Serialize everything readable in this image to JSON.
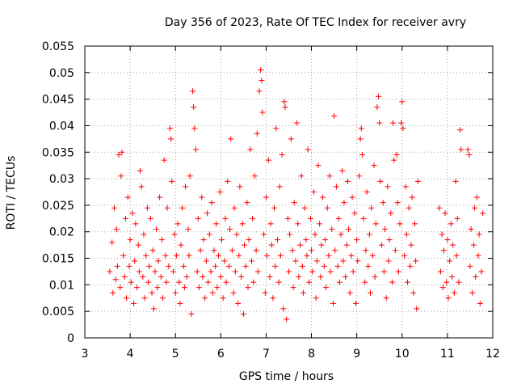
{
  "chart_data": {
    "type": "scatter",
    "title": "Day 356 of 2023, Rate Of TEC Index for receiver avry",
    "xlabel": "GPS time / hours",
    "ylabel": "ROTI / TECUs",
    "xlim": [
      3,
      12
    ],
    "ylim": [
      0,
      0.055
    ],
    "x_ticks": [
      "3",
      "4",
      "5",
      "6",
      "7",
      "8",
      "9",
      "10",
      "11",
      "12"
    ],
    "y_ticks": [
      "0",
      "0.005",
      "0.01",
      "0.015",
      "0.02",
      "0.025",
      "0.03",
      "0.035",
      "0.04",
      "0.045",
      "0.05",
      "0.055"
    ],
    "grid": true,
    "marker": "+",
    "series": [
      {
        "color": "#ff0000",
        "points": [
          [
            3.55,
            0.0125
          ],
          [
            3.6,
            0.018
          ],
          [
            3.62,
            0.0085
          ],
          [
            3.65,
            0.0245
          ],
          [
            3.68,
            0.011
          ],
          [
            3.7,
            0.0205
          ],
          [
            3.72,
            0.0135
          ],
          [
            3.75,
            0.0345
          ],
          [
            3.78,
            0.0095
          ],
          [
            3.8,
            0.0305
          ],
          [
            3.82,
            0.035
          ],
          [
            3.85,
            0.0155
          ],
          [
            3.88,
            0.0115
          ],
          [
            3.9,
            0.0225
          ],
          [
            3.92,
            0.0075
          ],
          [
            3.95,
            0.0265
          ],
          [
            3.98,
            0.0135
          ],
          [
            4.0,
            0.0185
          ],
          [
            4.02,
            0.0105
          ],
          [
            4.05,
            0.0235
          ],
          [
            4.08,
            0.0065
          ],
          [
            4.1,
            0.0145
          ],
          [
            4.12,
            0.0215
          ],
          [
            4.15,
            0.0095
          ],
          [
            4.18,
            0.0175
          ],
          [
            4.2,
            0.0125
          ],
          [
            4.22,
            0.0315
          ],
          [
            4.25,
            0.0285
          ],
          [
            4.28,
            0.0115
          ],
          [
            4.3,
            0.0195
          ],
          [
            4.32,
            0.0075
          ],
          [
            4.35,
            0.0155
          ],
          [
            4.38,
            0.0245
          ],
          [
            4.4,
            0.0105
          ],
          [
            4.42,
            0.0135
          ],
          [
            4.45,
            0.0225
          ],
          [
            4.48,
            0.0085
          ],
          [
            4.5,
            0.0165
          ],
          [
            4.52,
            0.0055
          ],
          [
            4.55,
            0.0125
          ],
          [
            4.58,
            0.0205
          ],
          [
            4.6,
            0.0095
          ],
          [
            4.62,
            0.0145
          ],
          [
            4.65,
            0.0265
          ],
          [
            4.68,
            0.0115
          ],
          [
            4.7,
            0.0185
          ],
          [
            4.72,
            0.0075
          ],
          [
            4.75,
            0.0335
          ],
          [
            4.78,
            0.0155
          ],
          [
            4.8,
            0.0105
          ],
          [
            4.82,
            0.0245
          ],
          [
            4.85,
            0.0135
          ],
          [
            4.88,
            0.0395
          ],
          [
            4.9,
            0.0375
          ],
          [
            4.92,
            0.0295
          ],
          [
            4.95,
            0.0125
          ],
          [
            4.98,
            0.0195
          ],
          [
            5.0,
            0.0085
          ],
          [
            5.02,
            0.0155
          ],
          [
            5.05,
            0.0215
          ],
          [
            5.08,
            0.0105
          ],
          [
            5.1,
            0.0065
          ],
          [
            5.12,
            0.0175
          ],
          [
            5.15,
            0.0245
          ],
          [
            5.18,
            0.0135
          ],
          [
            5.2,
            0.0095
          ],
          [
            5.22,
            0.0285
          ],
          [
            5.25,
            0.0115
          ],
          [
            5.28,
            0.0205
          ],
          [
            5.3,
            0.0155
          ],
          [
            5.32,
            0.0305
          ],
          [
            5.35,
            0.0045
          ],
          [
            5.38,
            0.0465
          ],
          [
            5.4,
            0.0435
          ],
          [
            5.42,
            0.0395
          ],
          [
            5.45,
            0.0355
          ],
          [
            5.48,
            0.0125
          ],
          [
            5.5,
            0.0225
          ],
          [
            5.52,
            0.0095
          ],
          [
            5.55,
            0.0165
          ],
          [
            5.58,
            0.0265
          ],
          [
            5.6,
            0.0115
          ],
          [
            5.62,
            0.0185
          ],
          [
            5.65,
            0.0075
          ],
          [
            5.68,
            0.0145
          ],
          [
            5.7,
            0.0235
          ],
          [
            5.72,
            0.0105
          ],
          [
            5.75,
            0.0195
          ],
          [
            5.78,
            0.0125
          ],
          [
            5.8,
            0.0255
          ],
          [
            5.82,
            0.0085
          ],
          [
            5.85,
            0.0165
          ],
          [
            5.88,
            0.0135
          ],
          [
            5.9,
            0.0215
          ],
          [
            5.92,
            0.0095
          ],
          [
            5.95,
            0.0155
          ],
          [
            5.98,
            0.0275
          ],
          [
            6.0,
            0.0115
          ],
          [
            6.02,
            0.0185
          ],
          [
            6.05,
            0.0075
          ],
          [
            6.08,
            0.0145
          ],
          [
            6.1,
            0.0225
          ],
          [
            6.12,
            0.0105
          ],
          [
            6.15,
            0.0295
          ],
          [
            6.18,
            0.0135
          ],
          [
            6.2,
            0.0205
          ],
          [
            6.22,
            0.0375
          ],
          [
            6.25,
            0.0165
          ],
          [
            6.28,
            0.0085
          ],
          [
            6.3,
            0.0245
          ],
          [
            6.32,
            0.0125
          ],
          [
            6.35,
            0.0195
          ],
          [
            6.38,
            0.0065
          ],
          [
            6.4,
            0.0155
          ],
          [
            6.42,
            0.0285
          ],
          [
            6.45,
            0.0115
          ],
          [
            6.48,
            0.0215
          ],
          [
            6.5,
            0.0045
          ],
          [
            6.52,
            0.0175
          ],
          [
            6.55,
            0.0135
          ],
          [
            6.58,
            0.0255
          ],
          [
            6.6,
            0.0095
          ],
          [
            6.62,
            0.0185
          ],
          [
            6.65,
            0.0355
          ],
          [
            6.68,
            0.0145
          ],
          [
            6.7,
            0.0225
          ],
          [
            6.72,
            0.0105
          ],
          [
            6.75,
            0.0305
          ],
          [
            6.78,
            0.0165
          ],
          [
            6.8,
            0.0385
          ],
          [
            6.82,
            0.0125
          ],
          [
            6.85,
            0.0465
          ],
          [
            6.88,
            0.0505
          ],
          [
            6.9,
            0.0485
          ],
          [
            6.92,
            0.0425
          ],
          [
            6.95,
            0.0195
          ],
          [
            6.98,
            0.0085
          ],
          [
            7.0,
            0.0265
          ],
          [
            7.02,
            0.0155
          ],
          [
            7.05,
            0.0335
          ],
          [
            7.08,
            0.0115
          ],
          [
            7.1,
            0.0215
          ],
          [
            7.12,
            0.0175
          ],
          [
            7.15,
            0.0075
          ],
          [
            7.18,
            0.0245
          ],
          [
            7.2,
            0.0135
          ],
          [
            7.22,
            0.0395
          ],
          [
            7.25,
            0.0185
          ],
          [
            7.28,
            0.0105
          ],
          [
            7.3,
            0.0285
          ],
          [
            7.32,
            0.0155
          ],
          [
            7.35,
            0.0345
          ],
          [
            7.38,
            0.0055
          ],
          [
            7.4,
            0.0445
          ],
          [
            7.42,
            0.0435
          ],
          [
            7.45,
            0.0035
          ],
          [
            7.48,
            0.0225
          ],
          [
            7.5,
            0.0125
          ],
          [
            7.52,
            0.0195
          ],
          [
            7.55,
            0.0375
          ],
          [
            7.58,
            0.0165
          ],
          [
            7.6,
            0.0095
          ],
          [
            7.62,
            0.0255
          ],
          [
            7.65,
            0.0145
          ],
          [
            7.68,
            0.0405
          ],
          [
            7.7,
            0.0215
          ],
          [
            7.72,
            0.0115
          ],
          [
            7.75,
            0.0175
          ],
          [
            7.78,
            0.0305
          ],
          [
            7.8,
            0.0135
          ],
          [
            7.82,
            0.0085
          ],
          [
            7.85,
            0.0245
          ],
          [
            7.88,
            0.0185
          ],
          [
            7.9,
            0.0155
          ],
          [
            7.92,
            0.0355
          ],
          [
            7.95,
            0.0105
          ],
          [
            7.98,
            0.0225
          ],
          [
            8.0,
            0.0165
          ],
          [
            8.02,
            0.0125
          ],
          [
            8.05,
            0.0275
          ],
          [
            8.08,
            0.0195
          ],
          [
            8.1,
            0.0075
          ],
          [
            8.12,
            0.0145
          ],
          [
            8.15,
            0.0325
          ],
          [
            8.18,
            0.0215
          ],
          [
            8.2,
            0.0115
          ],
          [
            8.22,
            0.0175
          ],
          [
            8.25,
            0.0265
          ],
          [
            8.28,
            0.0135
          ],
          [
            8.3,
            0.0185
          ],
          [
            8.32,
            0.0095
          ],
          [
            8.35,
            0.0245
          ],
          [
            8.38,
            0.0155
          ],
          [
            8.4,
            0.0305
          ],
          [
            8.42,
            0.0125
          ],
          [
            8.45,
            0.0205
          ],
          [
            8.48,
            0.0065
          ],
          [
            8.5,
            0.0418
          ],
          [
            8.52,
            0.0165
          ],
          [
            8.55,
            0.0285
          ],
          [
            8.58,
            0.0135
          ],
          [
            8.6,
            0.0225
          ],
          [
            8.62,
            0.0105
          ],
          [
            8.65,
            0.0195
          ],
          [
            8.68,
            0.0315
          ],
          [
            8.7,
            0.0145
          ],
          [
            8.72,
            0.0255
          ],
          [
            8.75,
            0.0115
          ],
          [
            8.78,
            0.0175
          ],
          [
            8.8,
            0.0295
          ],
          [
            8.82,
            0.0205
          ],
          [
            8.85,
            0.0085
          ],
          [
            8.88,
            0.0155
          ],
          [
            8.9,
            0.0265
          ],
          [
            8.92,
            0.0125
          ],
          [
            8.95,
            0.0235
          ],
          [
            8.98,
            0.0065
          ],
          [
            9.0,
            0.0185
          ],
          [
            9.02,
            0.0145
          ],
          [
            9.05,
            0.0305
          ],
          [
            9.08,
            0.0375
          ],
          [
            9.1,
            0.0395
          ],
          [
            9.12,
            0.0345
          ],
          [
            9.15,
            0.0225
          ],
          [
            9.18,
            0.0105
          ],
          [
            9.2,
            0.0165
          ],
          [
            9.22,
            0.0275
          ],
          [
            9.25,
            0.0135
          ],
          [
            9.28,
            0.0195
          ],
          [
            9.3,
            0.0085
          ],
          [
            9.32,
            0.0245
          ],
          [
            9.35,
            0.0155
          ],
          [
            9.38,
            0.0325
          ],
          [
            9.4,
            0.0115
          ],
          [
            9.42,
            0.0215
          ],
          [
            9.45,
            0.0435
          ],
          [
            9.48,
            0.0455
          ],
          [
            9.5,
            0.0405
          ],
          [
            9.52,
            0.0295
          ],
          [
            9.55,
            0.0175
          ],
          [
            9.58,
            0.0255
          ],
          [
            9.6,
            0.0125
          ],
          [
            9.62,
            0.0205
          ],
          [
            9.65,
            0.0075
          ],
          [
            9.68,
            0.0285
          ],
          [
            9.7,
            0.0145
          ],
          [
            9.72,
            0.0185
          ],
          [
            9.75,
            0.0235
          ],
          [
            9.78,
            0.0105
          ],
          [
            9.8,
            0.0405
          ],
          [
            9.82,
            0.0335
          ],
          [
            9.85,
            0.0165
          ],
          [
            9.88,
            0.0345
          ],
          [
            9.9,
            0.0255
          ],
          [
            9.92,
            0.0125
          ],
          [
            9.95,
            0.0215
          ],
          [
            9.98,
            0.0405
          ],
          [
            10.0,
            0.0445
          ],
          [
            10.02,
            0.0395
          ],
          [
            10.05,
            0.0155
          ],
          [
            10.08,
            0.0285
          ],
          [
            10.1,
            0.0195
          ],
          [
            10.12,
            0.0105
          ],
          [
            10.15,
            0.0245
          ],
          [
            10.18,
            0.0135
          ],
          [
            10.2,
            0.0175
          ],
          [
            10.22,
            0.0265
          ],
          [
            10.25,
            0.0085
          ],
          [
            10.28,
            0.0215
          ],
          [
            10.3,
            0.0145
          ],
          [
            10.32,
            0.0055
          ],
          [
            10.35,
            0.0295
          ],
          [
            10.82,
            0.0245
          ],
          [
            10.85,
            0.0125
          ],
          [
            10.88,
            0.0195
          ],
          [
            10.9,
            0.0095
          ],
          [
            10.92,
            0.0165
          ],
          [
            10.95,
            0.0235
          ],
          [
            10.98,
            0.0105
          ],
          [
            11.0,
            0.0185
          ],
          [
            11.02,
            0.0075
          ],
          [
            11.05,
            0.0145
          ],
          [
            11.08,
            0.0215
          ],
          [
            11.1,
            0.0115
          ],
          [
            11.12,
            0.0175
          ],
          [
            11.15,
            0.0085
          ],
          [
            11.18,
            0.0295
          ],
          [
            11.2,
            0.0155
          ],
          [
            11.22,
            0.0225
          ],
          [
            11.25,
            0.0105
          ],
          [
            11.28,
            0.0392
          ],
          [
            11.3,
            0.0355
          ],
          [
            11.45,
            0.0355
          ],
          [
            11.48,
            0.0345
          ],
          [
            11.5,
            0.0135
          ],
          [
            11.52,
            0.0205
          ],
          [
            11.55,
            0.0085
          ],
          [
            11.58,
            0.0175
          ],
          [
            11.6,
            0.0245
          ],
          [
            11.62,
            0.0115
          ],
          [
            11.65,
            0.0265
          ],
          [
            11.68,
            0.0155
          ],
          [
            11.7,
            0.0195
          ],
          [
            11.72,
            0.0065
          ],
          [
            11.75,
            0.0125
          ],
          [
            11.78,
            0.0235
          ]
        ]
      }
    ]
  }
}
